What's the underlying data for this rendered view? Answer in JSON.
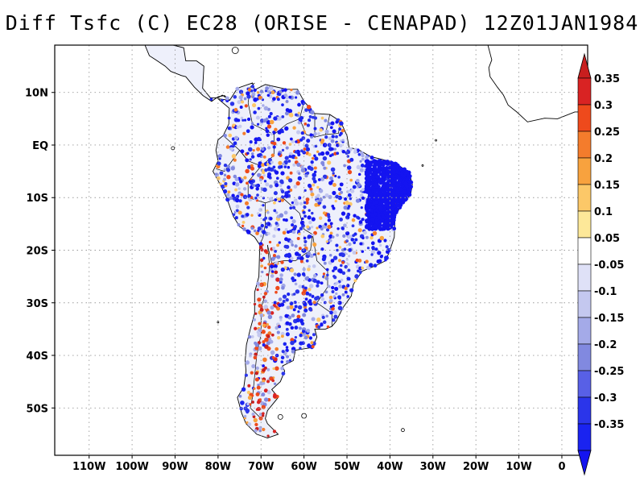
{
  "title": "Diff Tsfc (C) EC28 (ORISE - CENAPAD) 12Z01JAN1984",
  "lat_labels": [
    {
      "text": "10N",
      "lat": 10
    },
    {
      "text": "EQ",
      "lat": 0
    },
    {
      "text": "10S",
      "lat": -10
    },
    {
      "text": "20S",
      "lat": -20
    },
    {
      "text": "30S",
      "lat": -30
    },
    {
      "text": "40S",
      "lat": -40
    },
    {
      "text": "50S",
      "lat": -50
    }
  ],
  "lon_labels": [
    {
      "text": "110W",
      "lon": -110
    },
    {
      "text": "100W",
      "lon": -100
    },
    {
      "text": "90W",
      "lon": -90
    },
    {
      "text": "80W",
      "lon": -80
    },
    {
      "text": "70W",
      "lon": -70
    },
    {
      "text": "60W",
      "lon": -60
    },
    {
      "text": "50W",
      "lon": -50
    },
    {
      "text": "40W",
      "lon": -40
    },
    {
      "text": "30W",
      "lon": -30
    },
    {
      "text": "20W",
      "lon": -20
    },
    {
      "text": "10W",
      "lon": -10
    },
    {
      "text": "0",
      "lon": 0
    }
  ],
  "extent": {
    "lon_min": -118,
    "lon_max": 6,
    "lat_min": -59,
    "lat_max": 19
  },
  "colorbar": {
    "labels": [
      "0.35",
      "0.3",
      "0.25",
      "0.2",
      "0.15",
      "0.1",
      "0.05",
      "-0.05",
      "-0.1",
      "-0.15",
      "-0.2",
      "-0.25",
      "-0.3",
      "-0.35"
    ],
    "colors": [
      "#d92323",
      "#ee4a1c",
      "#f47c2c",
      "#f8a23e",
      "#fcc868",
      "#fde899",
      "#ffffff",
      "#dfe1f7",
      "#c4c8ef",
      "#a4aae8",
      "#8189e0",
      "#5860e6",
      "#2b35ea",
      "#1a23f0"
    ],
    "over_color": "#c81e1e",
    "under_color": "#1414f0"
  },
  "colors": {
    "land_fill": "#eef0fb",
    "grid": "#9a9a9a",
    "coast": "#000000"
  }
}
